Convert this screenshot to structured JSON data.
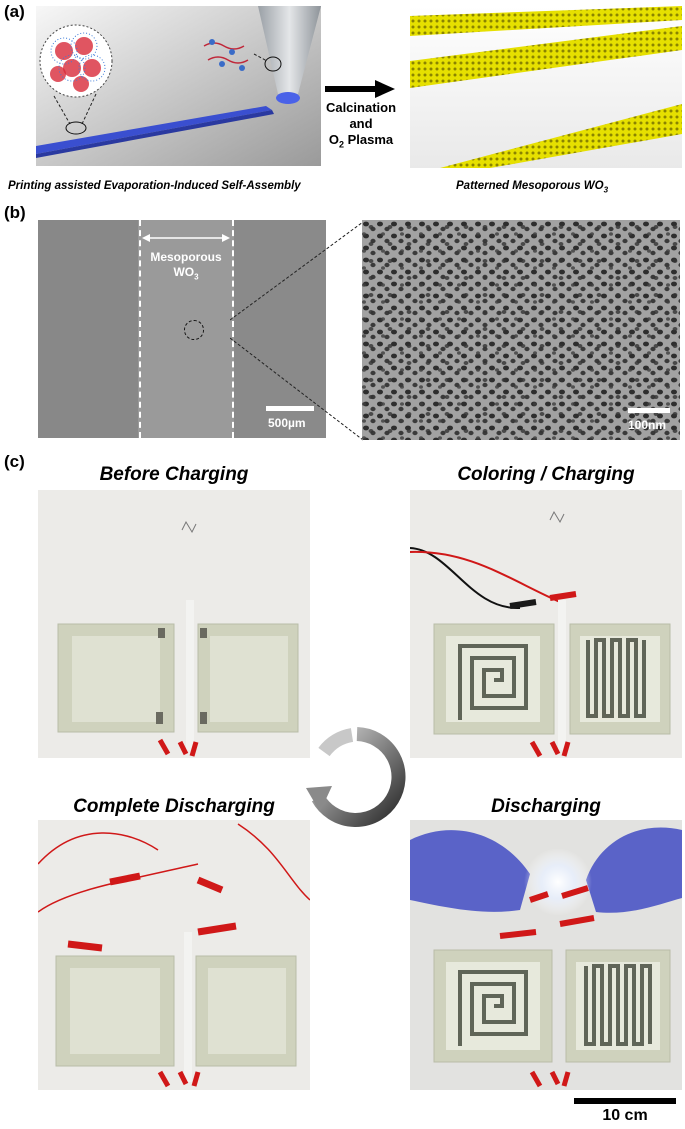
{
  "panels": {
    "a": {
      "label": "(a)",
      "arrow_text": {
        "line1": "Calcination",
        "line2": "and",
        "line3_prefix": "O",
        "line3_sub": "2",
        "line3_suffix": " Plasma"
      },
      "caption_left": "Printing assisted Evaporation-Induced Self-Assembly",
      "caption_right_prefix": "Patterned Mesoporous WO",
      "caption_right_sub": "3"
    },
    "b": {
      "label": "(b)",
      "left_image": {
        "annotation_line1": "Mesoporous",
        "annotation_line2_prefix": "WO",
        "annotation_line2_sub": "3",
        "scale_label": "500µm"
      },
      "right_image": {
        "scale_label": "100nm"
      }
    },
    "c": {
      "label": "(c)",
      "photos": {
        "top_left": {
          "title": "Before Charging"
        },
        "top_right": {
          "title": "Coloring / Charging"
        },
        "bottom_left": {
          "title": "Complete Discharging"
        },
        "bottom_right": {
          "title": "Discharging"
        }
      },
      "scale_label": "10 cm"
    }
  },
  "colors": {
    "printed_line": "#3a4fd0",
    "mesoporous_rods": "#e6e000",
    "clip_red": "#d01818",
    "glove": "#5a63c8",
    "device_glass": "#cfd2bd"
  }
}
